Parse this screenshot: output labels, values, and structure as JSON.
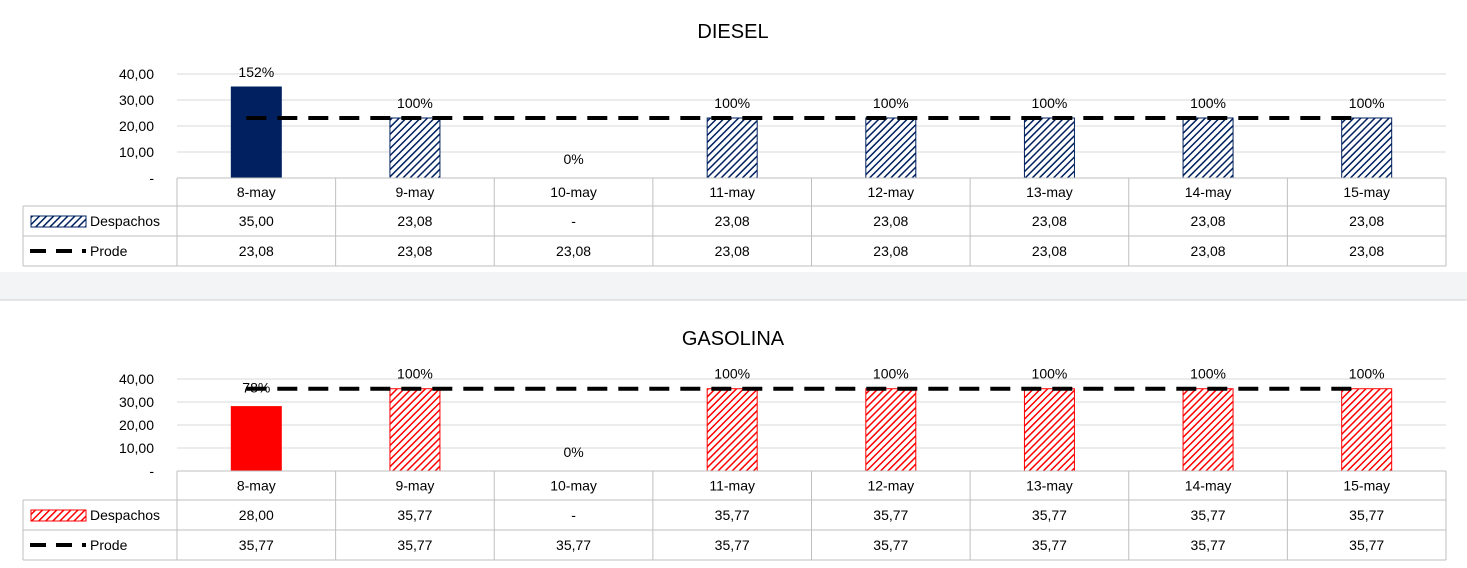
{
  "chart_data": [
    {
      "type": "bar",
      "title": "DIESEL",
      "categories": [
        "8-may",
        "9-may",
        "10-may",
        "11-may",
        "12-may",
        "13-may",
        "14-may",
        "15-may"
      ],
      "ylim": [
        0,
        40
      ],
      "y_ticks": [
        "40,00",
        "30,00",
        "20,00",
        "10,00",
        "-"
      ],
      "grid": true,
      "series": [
        {
          "name": "Despachos",
          "type": "bar",
          "values": [
            35.0,
            23.08,
            0,
            23.08,
            23.08,
            23.08,
            23.08,
            23.08
          ],
          "table_labels": [
            "35,00",
            "23,08",
            "-",
            "23,08",
            "23,08",
            "23,08",
            "23,08",
            "23,08"
          ],
          "color": "#002060",
          "pattern_color": "#002060",
          "first_bar_solid": true
        },
        {
          "name": "Prode",
          "type": "line",
          "style": "dashed",
          "values": [
            23.08,
            23.08,
            23.08,
            23.08,
            23.08,
            23.08,
            23.08,
            23.08
          ],
          "table_labels": [
            "23,08",
            "23,08",
            "23,08",
            "23,08",
            "23,08",
            "23,08",
            "23,08",
            "23,08"
          ],
          "color": "#000000"
        }
      ],
      "data_labels": [
        "152%",
        "100%",
        "0%",
        "100%",
        "100%",
        "100%",
        "100%",
        "100%"
      ]
    },
    {
      "type": "bar",
      "title": "GASOLINA",
      "categories": [
        "8-may",
        "9-may",
        "10-may",
        "11-may",
        "12-may",
        "13-may",
        "14-may",
        "15-may"
      ],
      "ylim": [
        0,
        40
      ],
      "y_ticks": [
        "40,00",
        "30,00",
        "20,00",
        "10,00",
        "-"
      ],
      "grid": true,
      "series": [
        {
          "name": "Despachos",
          "type": "bar",
          "values": [
            28.0,
            35.77,
            0,
            35.77,
            35.77,
            35.77,
            35.77,
            35.77
          ],
          "table_labels": [
            "28,00",
            "35,77",
            "-",
            "35,77",
            "35,77",
            "35,77",
            "35,77",
            "35,77"
          ],
          "color": "#ff0000",
          "pattern_color": "#ff0000",
          "first_bar_solid": true
        },
        {
          "name": "Prode",
          "type": "line",
          "style": "dashed",
          "values": [
            35.77,
            35.77,
            35.77,
            35.77,
            35.77,
            35.77,
            35.77,
            35.77
          ],
          "table_labels": [
            "35,77",
            "35,77",
            "35,77",
            "35,77",
            "35,77",
            "35,77",
            "35,77",
            "35,77"
          ],
          "color": "#000000"
        }
      ],
      "data_labels": [
        "78%",
        "100%",
        "0%",
        "100%",
        "100%",
        "100%",
        "100%",
        "100%"
      ]
    }
  ]
}
